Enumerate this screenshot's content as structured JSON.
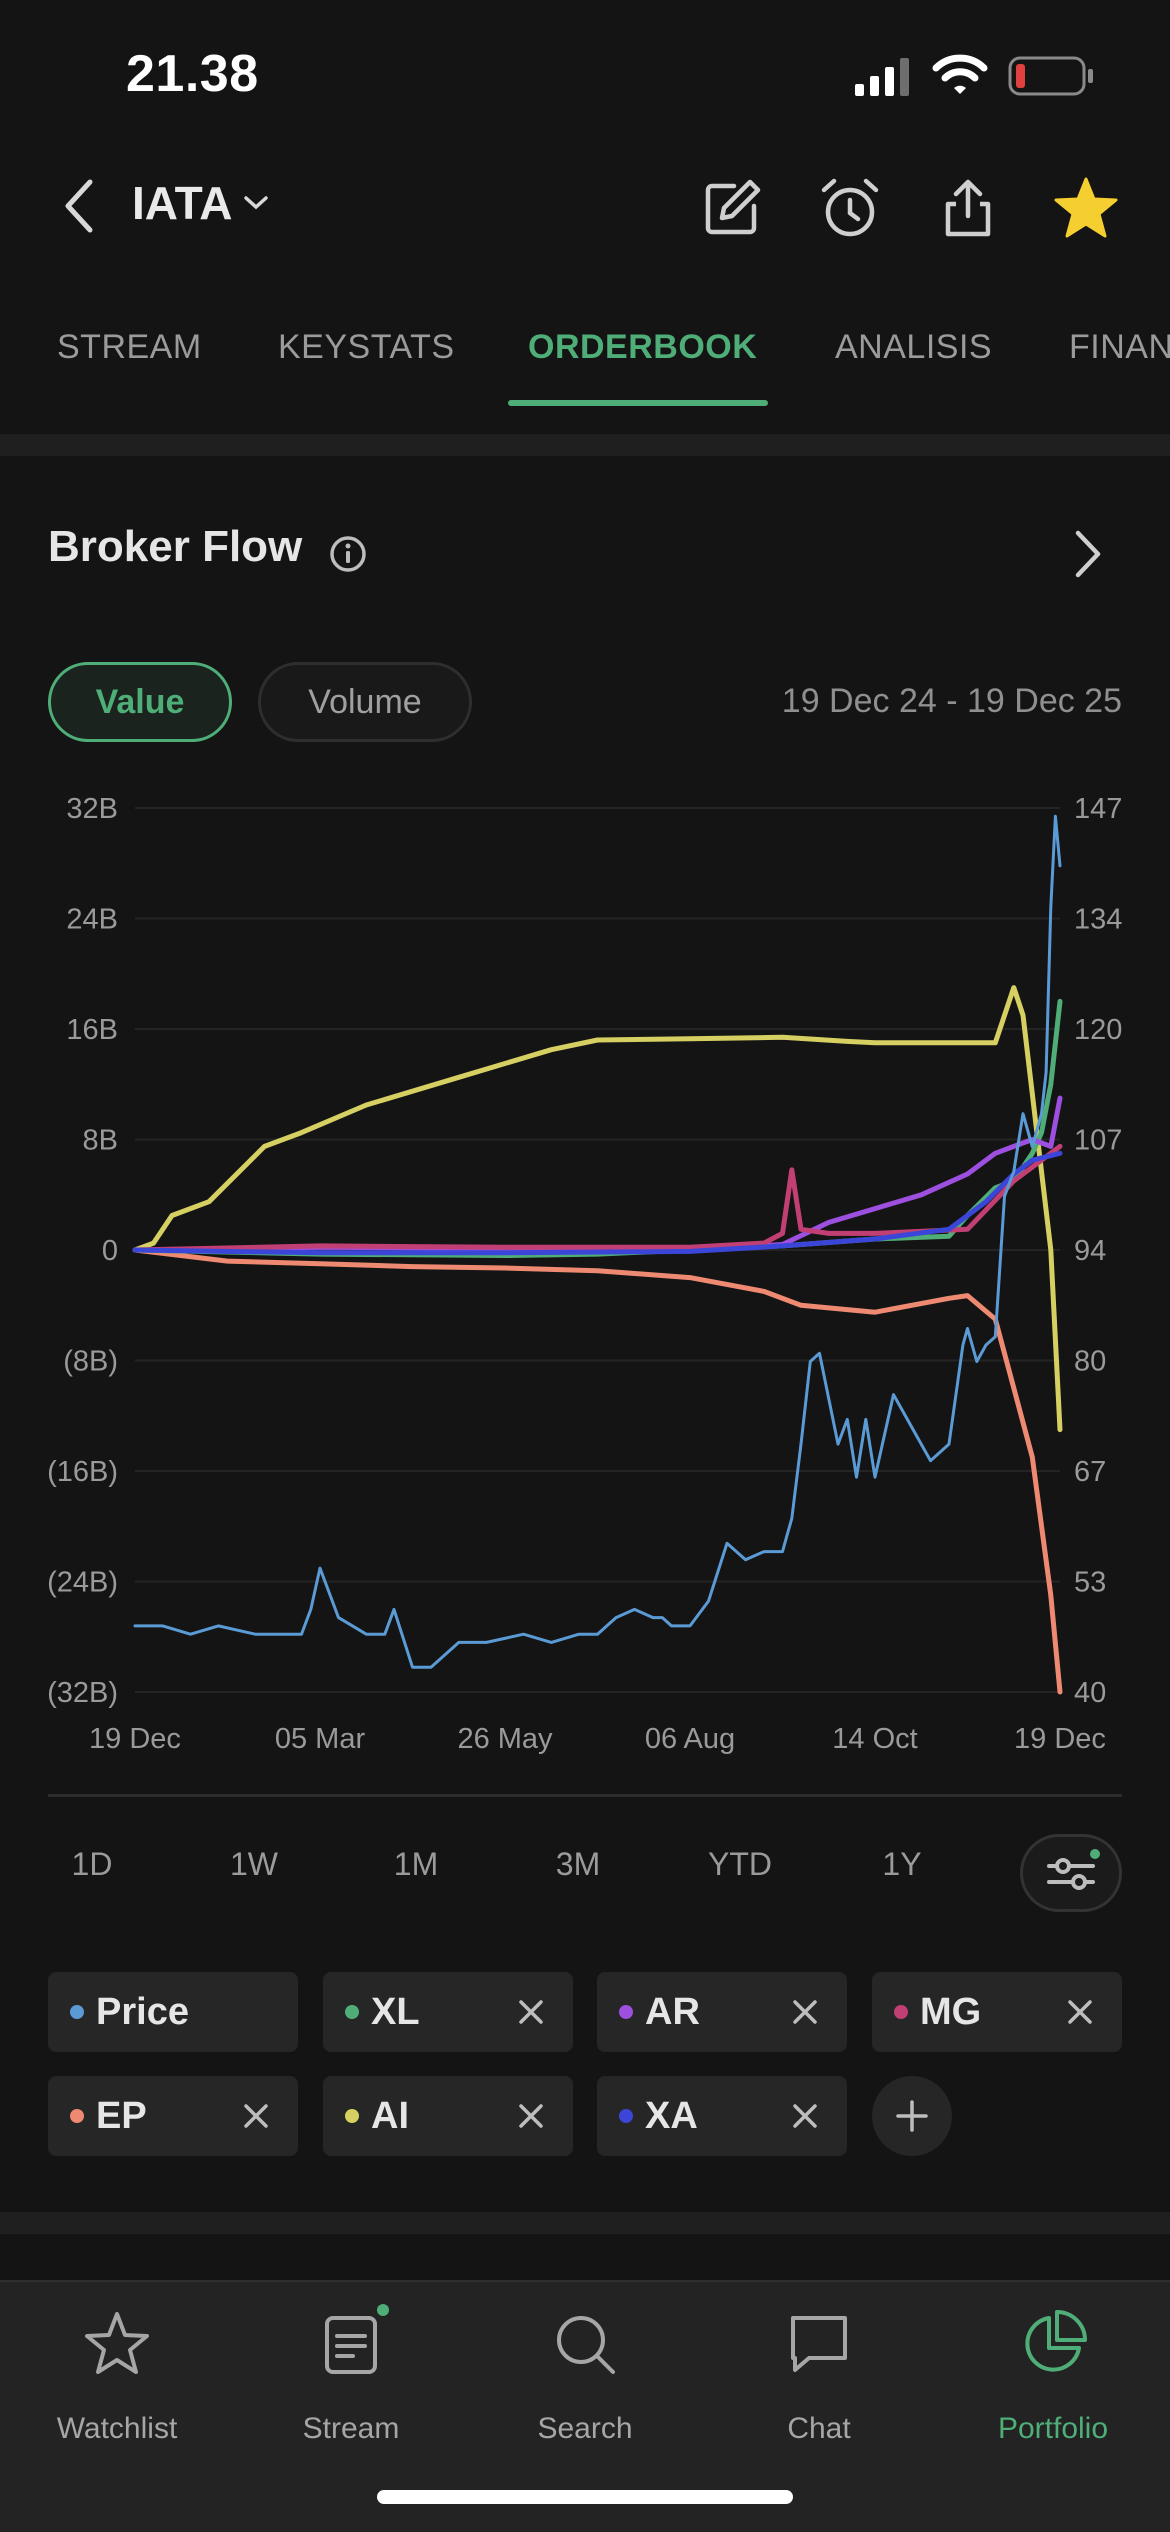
{
  "status_bar": {
    "time": "21.38"
  },
  "header": {
    "ticker": "IATA"
  },
  "tabs": [
    {
      "label": "STREAM"
    },
    {
      "label": "KEYSTATS"
    },
    {
      "label": "ORDERBOOK",
      "active": true
    },
    {
      "label": "ANALISIS"
    },
    {
      "label": "FINAN"
    }
  ],
  "card": {
    "title": "Broker Flow",
    "toggle": {
      "value_label": "Value",
      "volume_label": "Volume",
      "selected": "Value"
    },
    "date_range": "19 Dec 24 - 19 Dec 25"
  },
  "chart_data": {
    "type": "line",
    "x_ticks": [
      "19 Dec",
      "05 Mar",
      "26 May",
      "06 Aug",
      "14 Oct",
      "19 Dec"
    ],
    "y_left_ticks": [
      "32B",
      "24B",
      "16B",
      "8B",
      "0",
      "(8B)",
      "(16B)",
      "(24B)",
      "(32B)"
    ],
    "y_left_range": [
      -32,
      32
    ],
    "y_right_ticks": [
      "147",
      "134",
      "120",
      "107",
      "94",
      "80",
      "67",
      "53",
      "40"
    ],
    "y_right_range": [
      40,
      147
    ],
    "grid": true,
    "series": [
      {
        "name": "AI",
        "axis": "left",
        "unit": "B",
        "color": "#d6cf62",
        "x": [
          0,
          0.02,
          0.04,
          0.08,
          0.14,
          0.18,
          0.25,
          0.35,
          0.45,
          0.5,
          0.6,
          0.7,
          0.77,
          0.8,
          0.85,
          0.89,
          0.93,
          0.95,
          0.96,
          0.99,
          1.0
        ],
        "values": [
          0,
          0.5,
          2.5,
          3.5,
          7.5,
          8.5,
          10.5,
          12.5,
          14.5,
          15.2,
          15.3,
          15.4,
          15.1,
          15.0,
          15.0,
          15.0,
          15.0,
          19.0,
          17.0,
          0.0,
          -13.0
        ]
      },
      {
        "name": "EP",
        "axis": "left",
        "unit": "B",
        "color": "#ef8a72",
        "x": [
          0,
          0.1,
          0.2,
          0.3,
          0.4,
          0.5,
          0.6,
          0.68,
          0.72,
          0.8,
          0.88,
          0.9,
          0.93,
          0.95,
          0.97,
          0.99,
          1.0
        ],
        "values": [
          0,
          -0.8,
          -1.0,
          -1.2,
          -1.3,
          -1.5,
          -2.0,
          -3.0,
          -4.0,
          -4.5,
          -3.5,
          -3.3,
          -5.0,
          -10.0,
          -15.0,
          -25.0,
          -32.0
        ]
      },
      {
        "name": "XL",
        "axis": "left",
        "unit": "B",
        "color": "#4fae78",
        "x": [
          0,
          0.2,
          0.4,
          0.5,
          0.6,
          0.7,
          0.8,
          0.88,
          0.9,
          0.93,
          0.95,
          0.97,
          0.98,
          0.99,
          1.0
        ],
        "values": [
          0,
          -0.3,
          -0.4,
          -0.3,
          0,
          0.3,
          0.8,
          1.0,
          2.5,
          4.5,
          5.0,
          7.0,
          8.5,
          12.0,
          18.0
        ]
      },
      {
        "name": "AR",
        "axis": "left",
        "unit": "B",
        "color": "#9d4fe0",
        "x": [
          0,
          0.2,
          0.4,
          0.6,
          0.7,
          0.75,
          0.8,
          0.85,
          0.9,
          0.93,
          0.95,
          0.97,
          0.99,
          1.0
        ],
        "values": [
          0,
          0.2,
          0.1,
          0,
          0.4,
          2.0,
          3.0,
          4.0,
          5.5,
          7.0,
          7.5,
          8.0,
          7.5,
          11.0
        ]
      },
      {
        "name": "MG",
        "axis": "left",
        "unit": "B",
        "color": "#c23f74",
        "x": [
          0,
          0.2,
          0.4,
          0.6,
          0.68,
          0.7,
          0.71,
          0.72,
          0.75,
          0.8,
          0.9,
          0.95,
          1.0
        ],
        "values": [
          0,
          0.3,
          0.2,
          0.2,
          0.5,
          1.2,
          5.8,
          1.5,
          1.2,
          1.2,
          1.5,
          5.0,
          7.5
        ]
      },
      {
        "name": "XA",
        "axis": "left",
        "unit": "B",
        "color": "#3b46d8",
        "x": [
          0,
          0.2,
          0.4,
          0.6,
          0.7,
          0.8,
          0.88,
          0.92,
          0.95,
          0.97,
          1.0
        ],
        "values": [
          0,
          -0.2,
          -0.2,
          -0.1,
          0.3,
          0.8,
          1.5,
          3.5,
          5.5,
          6.5,
          7.0
        ]
      },
      {
        "name": "Price",
        "axis": "right",
        "color": "#5b9bd5",
        "x": [
          0,
          0.03,
          0.06,
          0.09,
          0.13,
          0.16,
          0.17,
          0.18,
          0.19,
          0.2,
          0.22,
          0.25,
          0.27,
          0.28,
          0.3,
          0.32,
          0.35,
          0.38,
          0.42,
          0.45,
          0.48,
          0.5,
          0.52,
          0.54,
          0.56,
          0.57,
          0.58,
          0.6,
          0.62,
          0.64,
          0.66,
          0.68,
          0.69,
          0.7,
          0.705,
          0.71,
          0.72,
          0.73,
          0.74,
          0.76,
          0.77,
          0.78,
          0.79,
          0.8,
          0.82,
          0.84,
          0.86,
          0.88,
          0.895,
          0.9,
          0.91,
          0.92,
          0.93,
          0.94,
          0.95,
          0.96,
          0.97,
          0.98,
          0.985,
          0.99,
          0.995,
          1.0
        ],
        "values": [
          48,
          48,
          47,
          48,
          47,
          47,
          47,
          47,
          50,
          55,
          49,
          47,
          47,
          50,
          43,
          43,
          46,
          46,
          47,
          46,
          47,
          47,
          49,
          50,
          49,
          49,
          48,
          48,
          51,
          58,
          56,
          57,
          57,
          57,
          59,
          61,
          70,
          80,
          81,
          70,
          73,
          66,
          73,
          66,
          76,
          72,
          68,
          70,
          82,
          84,
          80,
          82,
          83,
          100,
          103,
          110,
          106,
          110,
          115,
          135,
          146,
          140
        ]
      }
    ]
  },
  "ranges": [
    "1D",
    "1W",
    "1M",
    "3M",
    "YTD",
    "1Y"
  ],
  "legend": [
    {
      "label": "Price",
      "color": "#5b9bd5",
      "removable": false
    },
    {
      "label": "XL",
      "color": "#4fae78",
      "removable": true
    },
    {
      "label": "AR",
      "color": "#9d4fe0",
      "removable": true
    },
    {
      "label": "MG",
      "color": "#c23f74",
      "removable": true
    },
    {
      "label": "EP",
      "color": "#ef8a72",
      "removable": true
    },
    {
      "label": "AI",
      "color": "#d6cf62",
      "removable": true
    },
    {
      "label": "XA",
      "color": "#3b46d8",
      "removable": true
    }
  ],
  "bottom_nav": [
    {
      "label": "Watchlist",
      "icon": "star-icon"
    },
    {
      "label": "Stream",
      "icon": "stream-icon",
      "badge": true
    },
    {
      "label": "Search",
      "icon": "search-icon"
    },
    {
      "label": "Chat",
      "icon": "chat-icon"
    },
    {
      "label": "Portfolio",
      "icon": "portfolio-icon",
      "active": true
    }
  ],
  "colors": {
    "accent": "#4fae78",
    "star": "#f5cf30",
    "battery_low": "#e04040"
  }
}
